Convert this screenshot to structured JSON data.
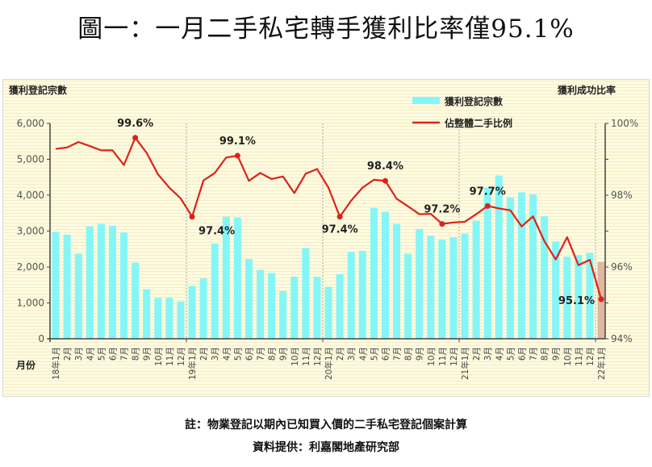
{
  "title": "圖一：一月二手私宅轉手獲利比率僅95.1%",
  "footer": {
    "note": "註：物業登記以期內已知買入價的二手私宅登記個案計算",
    "source": "資料提供：利嘉閣地產研究部"
  },
  "colors": {
    "bars": "#84f6f8",
    "bar_provisional": "#dcb9a0",
    "line": "#dd2218",
    "background": "#fffbe2"
  },
  "chart_data": {
    "type": "bar+line",
    "y_left_label": "獲利登記宗數",
    "y_right_label": "獲利成功比率",
    "x_label": "月份",
    "ylim_left": [
      0,
      6000
    ],
    "ylim_right": [
      94,
      100
    ],
    "left_ticks": [
      "0",
      "1,000",
      "2,000",
      "3,000",
      "4,000",
      "5,000",
      "6,000"
    ],
    "right_ticks": [
      "94%",
      "96%",
      "98%",
      "100%"
    ],
    "legend_position": "top-right",
    "categories": [
      "18年1月",
      "2月",
      "3月",
      "4月",
      "5月",
      "6月",
      "7月",
      "8月",
      "9月",
      "10月",
      "11月",
      "12月",
      "19年1月",
      "2月",
      "3月",
      "4月",
      "5月",
      "6月",
      "7月",
      "8月",
      "9月",
      "10月",
      "11月",
      "12月",
      "20年1月",
      "2月",
      "3月",
      "4月",
      "5月",
      "6月",
      "7月",
      "8月",
      "9月",
      "10月",
      "11月",
      "12月",
      "21年1月",
      "2月",
      "3月",
      "4月",
      "5月",
      "6月",
      "7月",
      "8月",
      "9月",
      "10月",
      "11月",
      "12月",
      "22年1月"
    ],
    "series": [
      {
        "name": "獲利登記宗數",
        "type": "bar",
        "axis": "left",
        "values": [
          2980,
          2900,
          2370,
          3130,
          3200,
          3150,
          2960,
          2120,
          1380,
          1140,
          1140,
          1040,
          1470,
          1680,
          2650,
          3400,
          3380,
          2220,
          1920,
          1830,
          1330,
          1730,
          2530,
          1730,
          1450,
          1800,
          2420,
          2450,
          3650,
          3540,
          3200,
          2370,
          3060,
          2870,
          2760,
          2830,
          2930,
          3290,
          4200,
          4550,
          3930,
          4080,
          4020,
          3410,
          2710,
          2290,
          2330,
          2390,
          2140
        ]
      },
      {
        "name": "佔整體二手比例",
        "type": "line",
        "axis": "right",
        "values": [
          99.29,
          99.33,
          99.48,
          99.37,
          99.25,
          99.25,
          98.84,
          99.6,
          99.18,
          98.58,
          98.21,
          97.91,
          97.4,
          98.41,
          98.62,
          99.05,
          99.1,
          98.4,
          98.62,
          98.45,
          98.52,
          98.06,
          98.6,
          98.73,
          98.21,
          97.4,
          97.85,
          98.21,
          98.43,
          98.4,
          97.9,
          97.69,
          97.47,
          97.48,
          97.2,
          97.24,
          97.26,
          97.47,
          97.7,
          97.63,
          97.58,
          97.13,
          97.41,
          96.72,
          96.21,
          96.83,
          96.05,
          96.2,
          95.1
        ]
      }
    ],
    "annotations": [
      {
        "index": 7,
        "text": "99.6%",
        "pos": "above"
      },
      {
        "index": 12,
        "text": "97.4%",
        "pos": "below-right"
      },
      {
        "index": 16,
        "text": "99.1%",
        "pos": "above"
      },
      {
        "index": 25,
        "text": "97.4%",
        "pos": "below"
      },
      {
        "index": 29,
        "text": "98.4%",
        "pos": "above"
      },
      {
        "index": 34,
        "text": "97.2%",
        "pos": "above"
      },
      {
        "index": 38,
        "text": "97.7%",
        "pos": "above"
      },
      {
        "index": 48,
        "text": "95.1%",
        "pos": "left"
      }
    ],
    "provisional_last_bar": true
  }
}
